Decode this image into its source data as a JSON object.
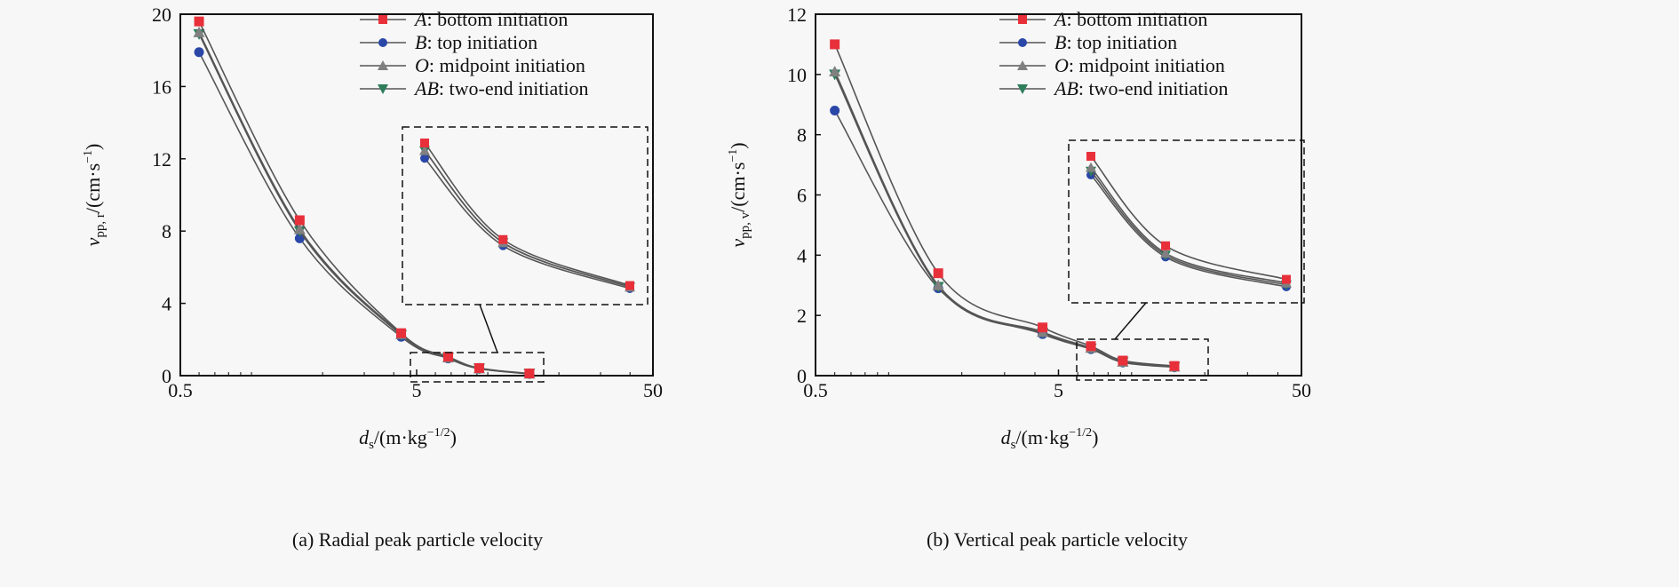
{
  "chart_data": [
    {
      "id": "a",
      "type": "line",
      "caption": "(a) Radial peak particle velocity",
      "xlabel_main": "d",
      "xlabel_sub": "s",
      "xlabel_unit": "/(m·kg",
      "xlabel_exp": "−1/2",
      "xlabel_close": ")",
      "ylabel_main": "v",
      "ylabel_sub": "pp, r",
      "ylabel_unit": "/(cm·s",
      "ylabel_exp": "−1",
      "ylabel_close": ")",
      "xscale": "log",
      "xlim": [
        0.5,
        50
      ],
      "ylim": [
        0,
        20
      ],
      "xticks": [
        0.5,
        5,
        50
      ],
      "xtick_labels": [
        "0.5",
        "5",
        "50"
      ],
      "yticks": [
        0,
        4,
        8,
        12,
        16,
        20
      ],
      "ytick_labels": [
        "0",
        "4",
        "8",
        "12",
        "16",
        "20"
      ],
      "legend_position": "top-right",
      "x": [
        0.6,
        1.6,
        4.3,
        6.8,
        9.2,
        15
      ],
      "series": [
        {
          "name": "A",
          "label": ": bottom initiation",
          "marker": "square",
          "color": "#e8303a",
          "values": [
            19.6,
            8.6,
            2.35,
            1.05,
            0.42,
            0.12
          ]
        },
        {
          "name": "B",
          "label": ": top initiation",
          "marker": "circle",
          "color": "#2a47a8",
          "values": [
            17.9,
            7.6,
            2.15,
            0.95,
            0.38,
            0.1
          ]
        },
        {
          "name": "O",
          "label": ": midpoint initiation",
          "marker": "triangle-up",
          "color": "#808080",
          "values": [
            19.0,
            8.1,
            2.3,
            1.0,
            0.4,
            0.11
          ]
        },
        {
          "name": "AB",
          "label": ": two-end initiation",
          "marker": "triangle-down",
          "color": "#2e7d5b",
          "values": [
            18.9,
            8.0,
            2.25,
            1.0,
            0.4,
            0.11
          ]
        }
      ],
      "inset": {
        "note": "magnified view of dashed region",
        "xrange": [
          6.8,
          15
        ],
        "yrange": [
          0,
          1.3
        ]
      }
    },
    {
      "id": "b",
      "type": "line",
      "caption": "(b) Vertical peak particle velocity",
      "xlabel_main": "d",
      "xlabel_sub": "s",
      "xlabel_unit": "/(m·kg",
      "xlabel_exp": "−1/2",
      "xlabel_close": ")",
      "ylabel_main": "v",
      "ylabel_sub": "pp, v",
      "ylabel_unit": "/(cm·s",
      "ylabel_exp": "−1",
      "ylabel_close": ")",
      "xscale": "log",
      "xlim": [
        0.5,
        50
      ],
      "ylim": [
        0,
        12
      ],
      "xticks": [
        0.5,
        5,
        50
      ],
      "xtick_labels": [
        "0.5",
        "5",
        "50"
      ],
      "yticks": [
        0,
        2,
        4,
        6,
        8,
        10,
        12
      ],
      "ytick_labels": [
        "0",
        "2",
        "4",
        "6",
        "8",
        "10",
        "12"
      ],
      "legend_position": "top-right",
      "x": [
        0.6,
        1.6,
        4.3,
        6.8,
        9.2,
        15
      ],
      "series": [
        {
          "name": "A",
          "label": ": bottom initiation",
          "marker": "square",
          "color": "#e8303a",
          "values": [
            11.0,
            3.4,
            1.6,
            0.98,
            0.5,
            0.32
          ]
        },
        {
          "name": "B",
          "label": ": top initiation",
          "marker": "circle",
          "color": "#2a47a8",
          "values": [
            8.8,
            2.9,
            1.38,
            0.88,
            0.44,
            0.28
          ]
        },
        {
          "name": "O",
          "label": ": midpoint initiation",
          "marker": "triangle-up",
          "color": "#808080",
          "values": [
            10.1,
            3.0,
            1.45,
            0.92,
            0.46,
            0.3
          ]
        },
        {
          "name": "AB",
          "label": ": two-end initiation",
          "marker": "triangle-down",
          "color": "#2e7d5b",
          "values": [
            10.0,
            2.95,
            1.42,
            0.9,
            0.45,
            0.29
          ]
        }
      ],
      "inset": {
        "note": "magnified view of dashed region",
        "xrange": [
          6.8,
          15
        ],
        "yrange": [
          0,
          1.2
        ]
      }
    }
  ]
}
